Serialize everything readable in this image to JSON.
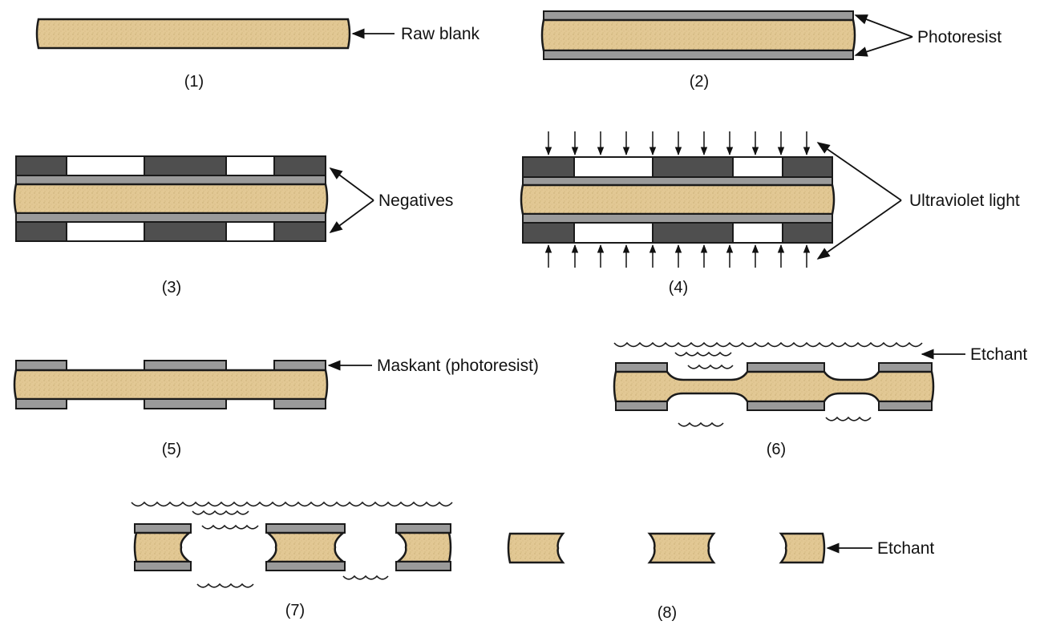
{
  "steps": [
    {
      "caption": "(1)"
    },
    {
      "caption": "(2)"
    },
    {
      "caption": "(3)"
    },
    {
      "caption": "(4)"
    },
    {
      "caption": "(5)"
    },
    {
      "caption": "(6)"
    },
    {
      "caption": "(7)"
    },
    {
      "caption": "(8)"
    }
  ],
  "labels": {
    "raw_blank": "Raw blank",
    "photoresist": "Photoresist",
    "negatives": "Negatives",
    "ultraviolet_light": "Ultraviolet light",
    "maskant": "Maskant (photoresist)",
    "etchant_6": "Etchant",
    "etchant_8": "Etchant"
  },
  "colors": {
    "blank": "#e2c894",
    "resist": "#9a9a9a",
    "negative_dark": "#4f4f4f",
    "outline": "#1a1a1a"
  }
}
